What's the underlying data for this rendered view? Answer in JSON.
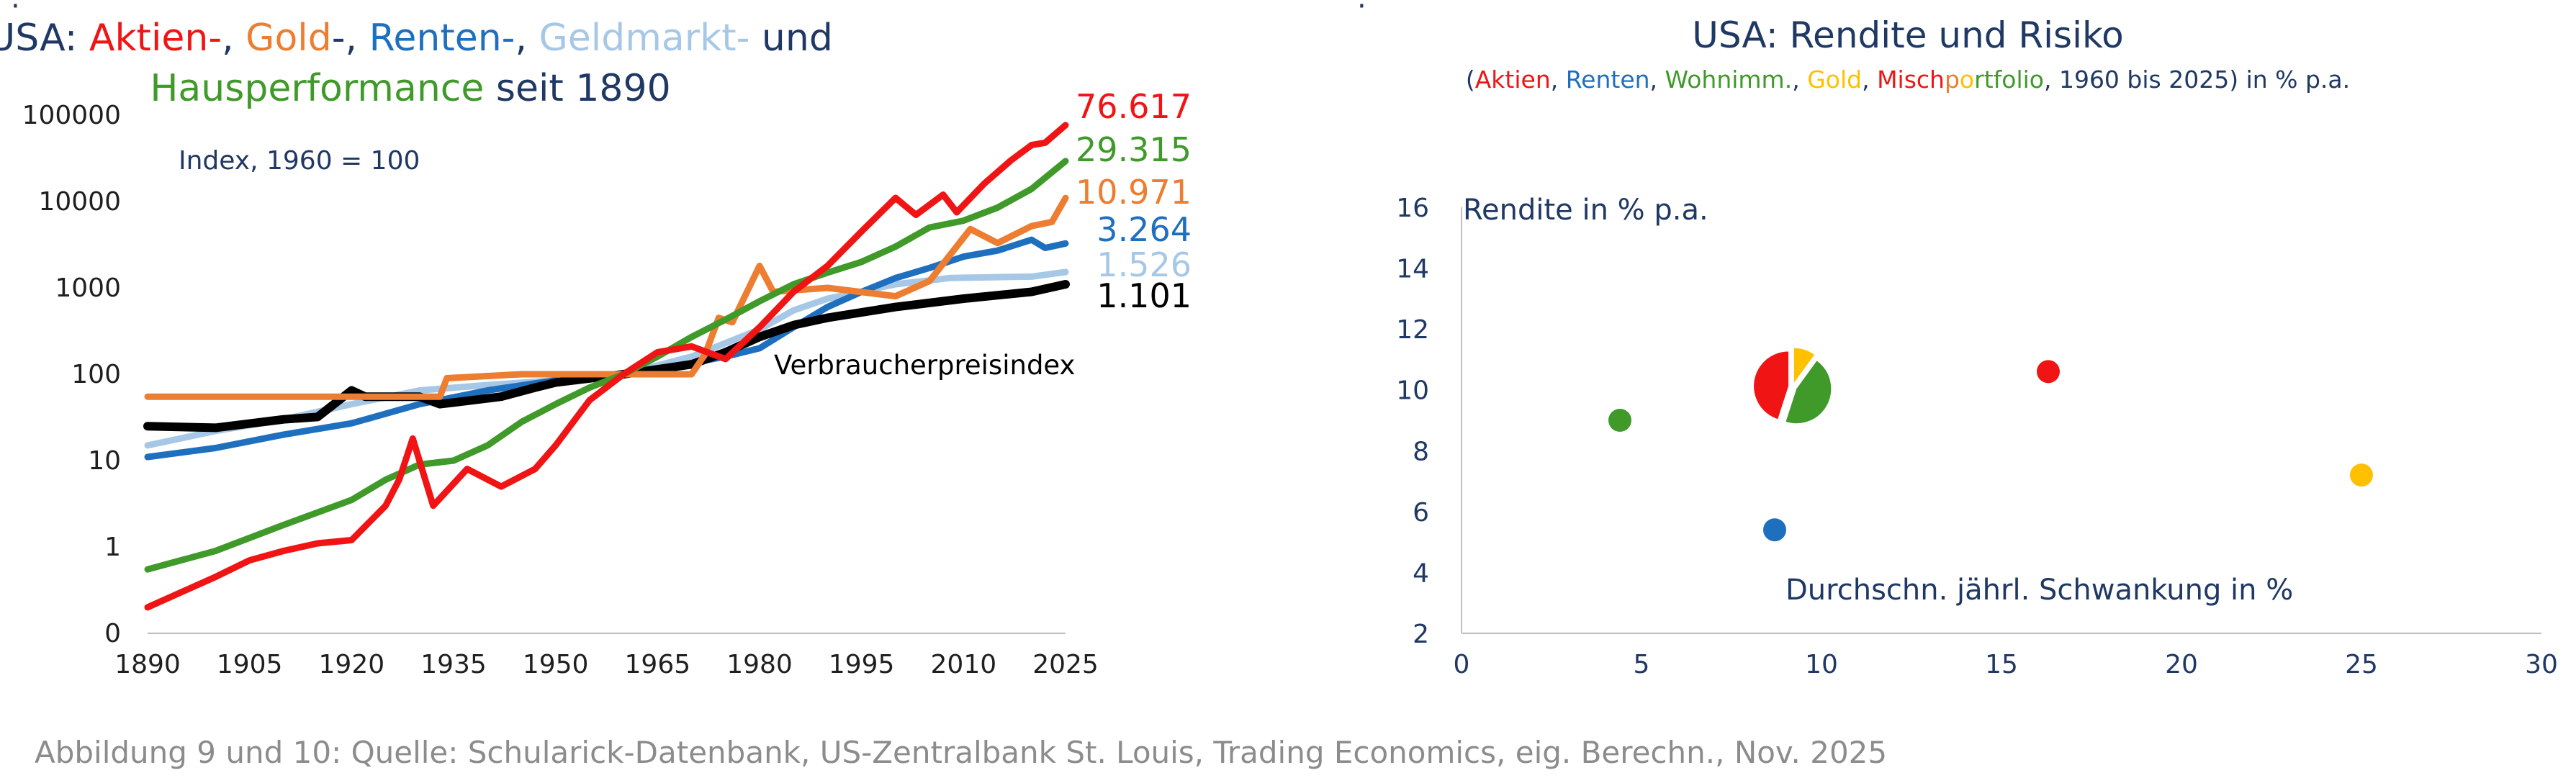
{
  "colors": {
    "stocks": "#f01414",
    "gold": "#ed7d31",
    "bonds": "#1f6fbf",
    "moneymarket": "#a6c8e6",
    "housing": "#3f9a2a",
    "cpi": "#000000",
    "navy": "#1f3864",
    "yellow": "#ffc000",
    "source": "#8c8c8c"
  },
  "left_title": {
    "line1": [
      {
        "text": "USA: ",
        "color": "navy"
      },
      {
        "text": "Aktien-",
        "color": "stocks"
      },
      {
        "text": ", ",
        "color": "navy"
      },
      {
        "text": "Gold",
        "color": "gold"
      },
      {
        "text": "-, ",
        "color": "navy"
      },
      {
        "text": "Renten-",
        "color": "bonds"
      },
      {
        "text": ", ",
        "color": "navy"
      },
      {
        "text": "Geldmarkt-",
        "color": "moneymarket"
      },
      {
        "text": "  und",
        "color": "navy"
      }
    ],
    "line2": [
      {
        "text": "Hausperformance",
        "color": "housing"
      },
      {
        "text": " seit 1890",
        "color": "navy"
      }
    ]
  },
  "right_title": {
    "line1": "USA: Rendite und  Risiko",
    "line2": [
      {
        "text": "(",
        "color": "navy"
      },
      {
        "text": "Aktien",
        "color": "stocks"
      },
      {
        "text": ", ",
        "color": "navy"
      },
      {
        "text": "Renten",
        "color": "bonds"
      },
      {
        "text": ", ",
        "color": "navy"
      },
      {
        "text": "Wohnimm.",
        "color": "housing"
      },
      {
        "text": ", ",
        "color": "navy"
      },
      {
        "text": "Gold",
        "color": "yellow"
      },
      {
        "text": ", ",
        "color": "navy"
      },
      {
        "text": "Misch",
        "color": "stocks"
      },
      {
        "text": "p",
        "color": "gold"
      },
      {
        "text": "o",
        "color": "yellow"
      },
      {
        "text": "rtfolio",
        "color": "housing"
      },
      {
        "text": ", 1960 bis 2025) in % p.a.",
        "color": "navy"
      }
    ]
  },
  "footer": "Abbildung 9 und 10: Quelle: Schularick-Datenbank, US-Zentralbank St. Louis, Trading Economics, eig. Berechn., Nov. 2025",
  "chart_data": [
    {
      "type": "line",
      "scale": "log",
      "title": "USA: Aktien-, Gold-, Renten-, Geldmarkt- und Hausperformance seit 1890",
      "annotation": "Index, 1960 = 100",
      "cpi_label": "Verbraucherpreisindex",
      "x_ticks": [
        "1890",
        "1905",
        "1920",
        "1935",
        "1950",
        "1965",
        "1980",
        "1995",
        "2010",
        "2025"
      ],
      "y_ticks": [
        "0",
        "1",
        "10",
        "100",
        "1000",
        "10000",
        "100000"
      ],
      "xlim": [
        1890,
        2025
      ],
      "series": [
        {
          "name": "Aktien",
          "color": "stocks",
          "end_label": "76.617",
          "x": [
            1890,
            1895,
            1900,
            1905,
            1910,
            1915,
            1920,
            1925,
            1927,
            1929,
            1932,
            1937,
            1942,
            1947,
            1950,
            1955,
            1960,
            1965,
            1970,
            1975,
            1980,
            1985,
            1990,
            1995,
            2000,
            2003,
            2007,
            2009,
            2013,
            2017,
            2020,
            2022,
            2025
          ],
          "values": [
            0.2,
            0.3,
            0.45,
            0.7,
            0.9,
            1.1,
            1.2,
            3,
            6,
            18,
            3,
            8,
            5,
            8,
            15,
            50,
            100,
            180,
            210,
            150,
            350,
            900,
            1800,
            4500,
            11000,
            7000,
            12000,
            7500,
            16000,
            30000,
            45000,
            48000,
            76617
          ]
        },
        {
          "name": "Wohnimmobilien",
          "color": "housing",
          "end_label": "29.315",
          "x": [
            1890,
            1900,
            1910,
            1920,
            1925,
            1930,
            1935,
            1940,
            1945,
            1950,
            1955,
            1960,
            1965,
            1970,
            1975,
            1980,
            1985,
            1990,
            1995,
            2000,
            2005,
            2010,
            2015,
            2020,
            2025
          ],
          "values": [
            0.55,
            0.9,
            1.8,
            3.5,
            6,
            9,
            10,
            15,
            28,
            45,
            70,
            100,
            160,
            270,
            430,
            700,
            1100,
            1500,
            2000,
            3000,
            5000,
            6000,
            8500,
            14000,
            29315
          ]
        },
        {
          "name": "Gold",
          "color": "gold",
          "end_label": "10.971",
          "x": [
            1890,
            1900,
            1920,
            1933,
            1934,
            1945,
            1955,
            1960,
            1965,
            1970,
            1972,
            1974,
            1976,
            1980,
            1982,
            1990,
            2000,
            2005,
            2011,
            2015,
            2020,
            2023,
            2025
          ],
          "values": [
            55,
            55,
            55,
            55,
            90,
            100,
            100,
            100,
            100,
            100,
            170,
            450,
            400,
            1800,
            900,
            1000,
            800,
            1200,
            4800,
            3300,
            5200,
            5800,
            10971
          ]
        },
        {
          "name": "Renten",
          "color": "bonds",
          "end_label": "3.264",
          "x": [
            1890,
            1900,
            1910,
            1920,
            1930,
            1940,
            1950,
            1960,
            1970,
            1975,
            1980,
            1985,
            1990,
            1995,
            2000,
            2005,
            2010,
            2015,
            2020,
            2022,
            2025
          ],
          "values": [
            11,
            14,
            20,
            27,
            45,
            65,
            85,
            100,
            135,
            160,
            200,
            350,
            600,
            900,
            1300,
            1700,
            2300,
            2700,
            3600,
            2900,
            3264
          ]
        },
        {
          "name": "Geldmarkt",
          "color": "moneymarket",
          "end_label": "1.526",
          "x": [
            1890,
            1900,
            1910,
            1920,
            1930,
            1940,
            1950,
            1960,
            1970,
            1980,
            1985,
            1990,
            2000,
            2008,
            2015,
            2020,
            2025
          ],
          "values": [
            15,
            22,
            30,
            45,
            65,
            75,
            85,
            100,
            160,
            330,
            550,
            750,
            1100,
            1300,
            1330,
            1350,
            1526
          ]
        },
        {
          "name": "Verbraucherpreisindex",
          "color": "cpi",
          "end_label": "1.101",
          "x": [
            1890,
            1900,
            1910,
            1915,
            1920,
            1922,
            1930,
            1933,
            1942,
            1947,
            1950,
            1960,
            1970,
            1975,
            1980,
            1985,
            1990,
            1995,
            2000,
            2010,
            2020,
            2025
          ],
          "values": [
            25,
            24,
            30,
            32,
            65,
            55,
            55,
            45,
            55,
            70,
            80,
            100,
            130,
            180,
            270,
            370,
            450,
            520,
            600,
            750,
            900,
            1101
          ]
        }
      ]
    },
    {
      "type": "scatter",
      "title": "USA: Rendite und Risiko",
      "ylabel": "Rendite in % p.a.",
      "xlabel": "Durchschn. jährl. Schwankung in %",
      "xlim": [
        0,
        30
      ],
      "ylim": [
        2,
        16
      ],
      "x_ticks": [
        "0",
        "5",
        "10",
        "15",
        "20",
        "25",
        "30"
      ],
      "y_ticks": [
        "2",
        "4",
        "6",
        "8",
        "10",
        "12",
        "14",
        "16"
      ],
      "points": [
        {
          "name": "Aktien",
          "x": 16.3,
          "y": 10.6,
          "color": "stocks"
        },
        {
          "name": "Renten",
          "x": 8.7,
          "y": 5.4,
          "color": "bonds"
        },
        {
          "name": "Wohnimm.",
          "x": 4.4,
          "y": 9.0,
          "color": "housing"
        },
        {
          "name": "Gold",
          "x": 25.0,
          "y": 7.2,
          "color": "yellow"
        }
      ],
      "mixed_portfolio": {
        "name": "Mischportfolio",
        "x": 9.2,
        "y": 10.1,
        "slices": [
          {
            "name": "Aktien",
            "share": 0.45,
            "color": "stocks"
          },
          {
            "name": "Gold",
            "share": 0.1,
            "color": "yellow"
          },
          {
            "name": "Wohnimm.",
            "share": 0.45,
            "color": "housing"
          }
        ]
      }
    }
  ]
}
